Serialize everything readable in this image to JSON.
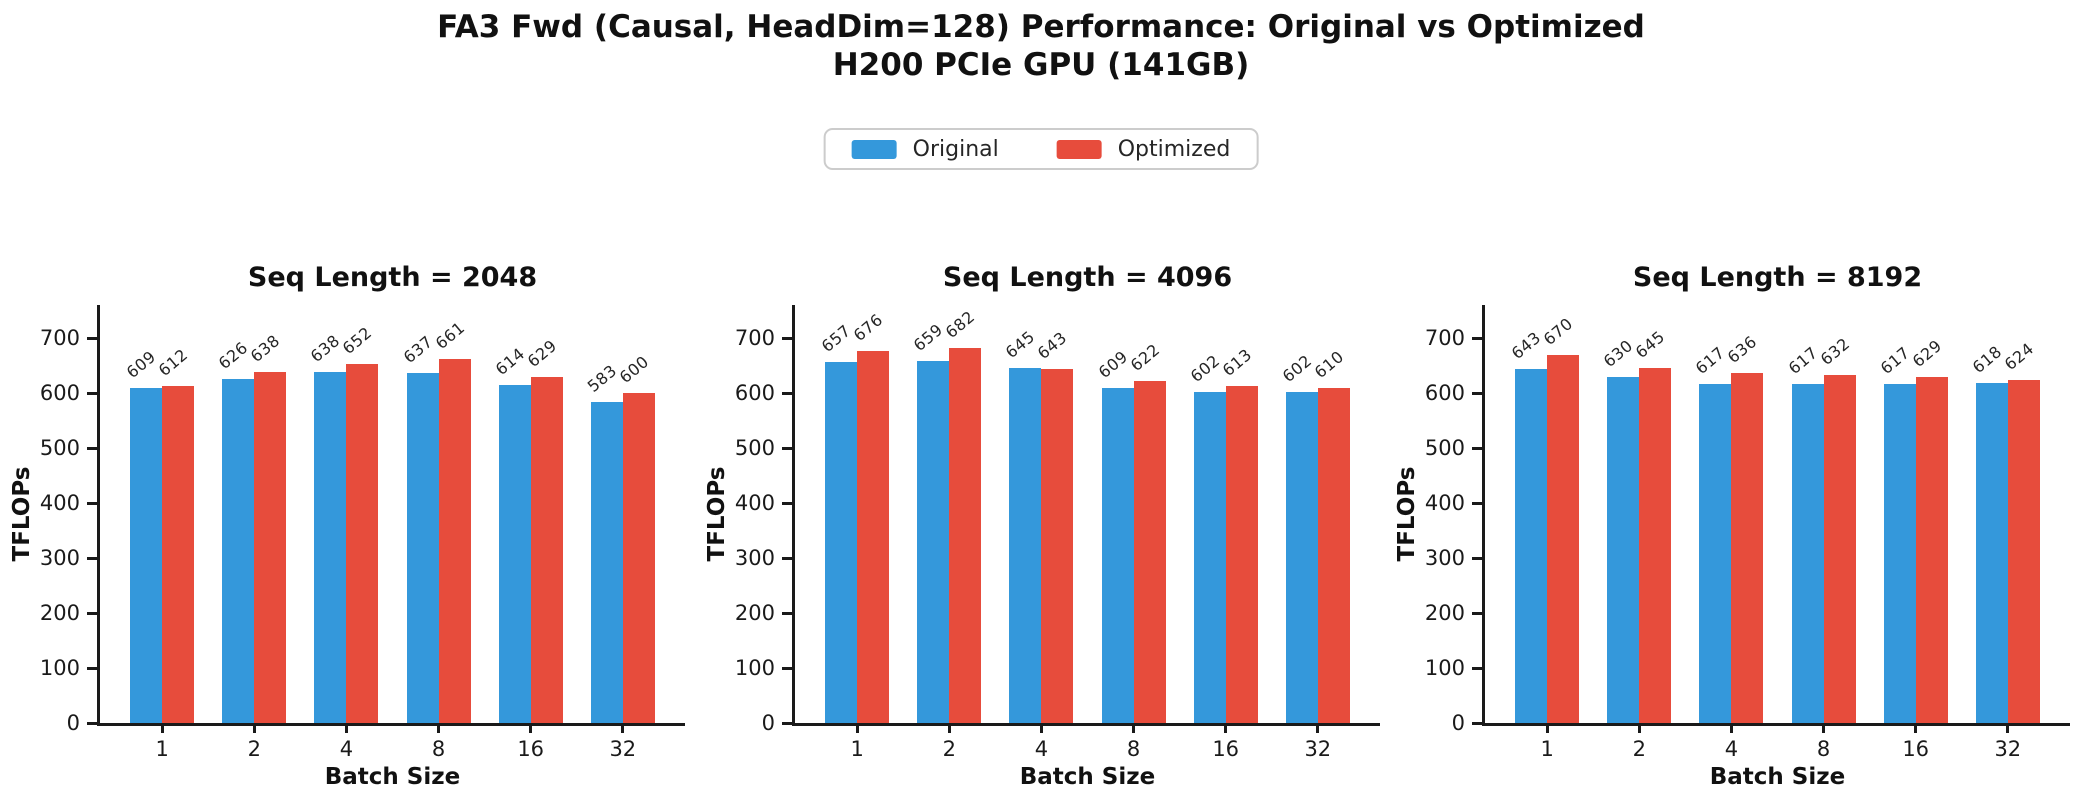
{
  "figure": {
    "title_line1": "FA3 Fwd (Causal, HeadDim=128) Performance: Original vs Optimized",
    "title_line2": "H200 PCIe GPU (141GB)"
  },
  "legend": {
    "position": "figure-top-center",
    "entries": [
      {
        "label": "Original",
        "color": "#3498db"
      },
      {
        "label": "Optimized",
        "color": "#e74c3c"
      }
    ]
  },
  "colors": {
    "original": "#3498db",
    "optimized": "#e74c3c",
    "axis": "#1a1a1a",
    "value_label": "#262626",
    "background": "#ffffff"
  },
  "chart_data": [
    {
      "type": "bar",
      "title": "Seq Length = 2048",
      "xlabel": "Batch Size",
      "ylabel": "TFLOPs",
      "categories": [
        "1",
        "2",
        "4",
        "8",
        "16",
        "32"
      ],
      "series": [
        {
          "name": "Original",
          "values": [
            609,
            626,
            638,
            637,
            614,
            583
          ]
        },
        {
          "name": "Optimized",
          "values": [
            612,
            638,
            652,
            661,
            629,
            600
          ]
        }
      ],
      "yticks": [
        0,
        100,
        200,
        300,
        400,
        500,
        600,
        700
      ],
      "ylim": [
        0,
        760
      ],
      "grid": false,
      "bar_value_labels": true,
      "value_label_rotation": 40
    },
    {
      "type": "bar",
      "title": "Seq Length = 4096",
      "xlabel": "Batch Size",
      "ylabel": "TFLOPs",
      "categories": [
        "1",
        "2",
        "4",
        "8",
        "16",
        "32"
      ],
      "series": [
        {
          "name": "Original",
          "values": [
            657,
            659,
            645,
            609,
            602,
            602
          ]
        },
        {
          "name": "Optimized",
          "values": [
            676,
            682,
            643,
            622,
            613,
            610
          ]
        }
      ],
      "yticks": [
        0,
        100,
        200,
        300,
        400,
        500,
        600,
        700
      ],
      "ylim": [
        0,
        760
      ],
      "grid": false,
      "bar_value_labels": true,
      "value_label_rotation": 40
    },
    {
      "type": "bar",
      "title": "Seq Length = 8192",
      "xlabel": "Batch Size",
      "ylabel": "TFLOPs",
      "categories": [
        "1",
        "2",
        "4",
        "8",
        "16",
        "32"
      ],
      "series": [
        {
          "name": "Original",
          "values": [
            643,
            630,
            617,
            617,
            617,
            618
          ]
        },
        {
          "name": "Optimized",
          "values": [
            670,
            645,
            636,
            632,
            629,
            624
          ]
        }
      ],
      "yticks": [
        0,
        100,
        200,
        300,
        400,
        500,
        600,
        700
      ],
      "ylim": [
        0,
        760
      ],
      "grid": false,
      "bar_value_labels": true,
      "value_label_rotation": 40
    }
  ]
}
